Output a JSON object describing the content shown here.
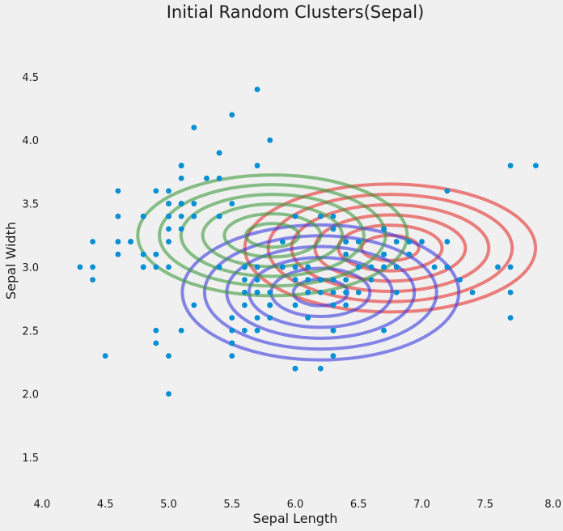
{
  "chart_data": {
    "type": "scatter",
    "title": "Initial Random Clusters(Sepal)",
    "xlabel": "Sepal Length",
    "ylabel": "Sepal Width",
    "xlim": [
      4.0,
      8.0
    ],
    "ylim": [
      1.2,
      4.85
    ],
    "xticks": [
      "4.0",
      "4.5",
      "5.0",
      "5.5",
      "6.0",
      "6.5",
      "7.0",
      "7.5",
      "8.0"
    ],
    "yticks": [
      "1.5",
      "2.0",
      "2.5",
      "3.0",
      "3.5",
      "4.0",
      "4.5"
    ],
    "grid": false,
    "legend": "none",
    "point_color": "#008fd5",
    "points": [
      [
        5.1,
        3.5
      ],
      [
        4.9,
        3.0
      ],
      [
        4.7,
        3.2
      ],
      [
        4.6,
        3.1
      ],
      [
        5.0,
        3.6
      ],
      [
        5.4,
        3.9
      ],
      [
        4.6,
        3.4
      ],
      [
        5.0,
        3.4
      ],
      [
        4.4,
        2.9
      ],
      [
        4.9,
        3.1
      ],
      [
        5.4,
        3.7
      ],
      [
        4.8,
        3.4
      ],
      [
        4.8,
        3.0
      ],
      [
        4.3,
        3.0
      ],
      [
        5.8,
        4.0
      ],
      [
        5.7,
        4.4
      ],
      [
        5.4,
        3.9
      ],
      [
        5.1,
        3.5
      ],
      [
        5.7,
        3.8
      ],
      [
        5.1,
        3.8
      ],
      [
        5.4,
        3.4
      ],
      [
        5.1,
        3.7
      ],
      [
        4.6,
        3.6
      ],
      [
        5.1,
        3.3
      ],
      [
        4.8,
        3.4
      ],
      [
        5.0,
        3.0
      ],
      [
        5.0,
        3.4
      ],
      [
        5.2,
        3.5
      ],
      [
        5.2,
        3.4
      ],
      [
        4.7,
        3.2
      ],
      [
        4.8,
        3.1
      ],
      [
        5.4,
        3.4
      ],
      [
        5.2,
        4.1
      ],
      [
        5.5,
        4.2
      ],
      [
        4.9,
        3.1
      ],
      [
        5.0,
        3.2
      ],
      [
        5.5,
        3.5
      ],
      [
        4.9,
        3.6
      ],
      [
        4.4,
        3.0
      ],
      [
        5.1,
        3.4
      ],
      [
        5.0,
        3.5
      ],
      [
        4.5,
        2.3
      ],
      [
        4.4,
        3.2
      ],
      [
        5.0,
        3.5
      ],
      [
        5.1,
        3.8
      ],
      [
        4.8,
        3.0
      ],
      [
        5.1,
        3.8
      ],
      [
        4.6,
        3.2
      ],
      [
        5.3,
        3.7
      ],
      [
        5.0,
        3.3
      ],
      [
        7.0,
        3.2
      ],
      [
        6.4,
        3.2
      ],
      [
        6.9,
        3.1
      ],
      [
        5.5,
        2.3
      ],
      [
        6.5,
        2.8
      ],
      [
        5.7,
        2.8
      ],
      [
        6.3,
        3.3
      ],
      [
        4.9,
        2.4
      ],
      [
        6.6,
        2.9
      ],
      [
        5.2,
        2.7
      ],
      [
        5.0,
        2.0
      ],
      [
        5.9,
        3.0
      ],
      [
        6.0,
        2.2
      ],
      [
        6.1,
        2.9
      ],
      [
        5.6,
        2.9
      ],
      [
        6.7,
        3.1
      ],
      [
        5.6,
        3.0
      ],
      [
        5.8,
        2.7
      ],
      [
        6.2,
        2.2
      ],
      [
        5.6,
        2.5
      ],
      [
        5.9,
        3.2
      ],
      [
        6.1,
        2.8
      ],
      [
        6.3,
        2.5
      ],
      [
        6.1,
        2.8
      ],
      [
        6.4,
        2.9
      ],
      [
        6.6,
        3.0
      ],
      [
        6.8,
        2.8
      ],
      [
        6.7,
        3.0
      ],
      [
        6.0,
        2.9
      ],
      [
        5.7,
        2.6
      ],
      [
        5.5,
        2.4
      ],
      [
        5.5,
        2.4
      ],
      [
        5.8,
        2.7
      ],
      [
        6.0,
        2.7
      ],
      [
        5.4,
        3.0
      ],
      [
        6.0,
        3.4
      ],
      [
        6.7,
        3.1
      ],
      [
        6.3,
        2.3
      ],
      [
        5.6,
        3.0
      ],
      [
        5.5,
        2.5
      ],
      [
        5.5,
        2.6
      ],
      [
        6.1,
        3.0
      ],
      [
        5.8,
        2.6
      ],
      [
        5.0,
        2.3
      ],
      [
        5.6,
        2.7
      ],
      [
        5.7,
        3.0
      ],
      [
        5.7,
        2.9
      ],
      [
        6.2,
        2.9
      ],
      [
        5.1,
        2.5
      ],
      [
        5.7,
        2.8
      ],
      [
        6.3,
        3.3
      ],
      [
        5.8,
        2.7
      ],
      [
        7.1,
        3.0
      ],
      [
        6.3,
        2.9
      ],
      [
        6.5,
        3.0
      ],
      [
        7.6,
        3.0
      ],
      [
        4.9,
        2.5
      ],
      [
        7.3,
        2.9
      ],
      [
        6.7,
        2.5
      ],
      [
        7.2,
        3.6
      ],
      [
        6.5,
        3.2
      ],
      [
        6.4,
        2.7
      ],
      [
        6.8,
        3.0
      ],
      [
        5.7,
        2.5
      ],
      [
        5.8,
        2.8
      ],
      [
        6.4,
        3.2
      ],
      [
        6.5,
        3.0
      ],
      [
        7.7,
        3.8
      ],
      [
        7.7,
        2.6
      ],
      [
        6.0,
        2.2
      ],
      [
        6.9,
        3.2
      ],
      [
        5.6,
        2.8
      ],
      [
        7.7,
        2.8
      ],
      [
        6.3,
        2.7
      ],
      [
        6.7,
        3.3
      ],
      [
        7.2,
        3.2
      ],
      [
        6.2,
        2.8
      ],
      [
        6.1,
        3.0
      ],
      [
        6.4,
        2.8
      ],
      [
        7.2,
        3.0
      ],
      [
        7.4,
        2.8
      ],
      [
        7.9,
        3.8
      ],
      [
        6.4,
        2.8
      ],
      [
        6.3,
        2.8
      ],
      [
        6.1,
        2.6
      ],
      [
        7.7,
        3.0
      ],
      [
        6.3,
        3.4
      ],
      [
        6.4,
        3.1
      ],
      [
        6.0,
        3.0
      ],
      [
        6.9,
        3.1
      ],
      [
        6.7,
        3.1
      ],
      [
        6.9,
        3.1
      ],
      [
        5.8,
        2.7
      ],
      [
        6.8,
        3.2
      ],
      [
        6.7,
        3.3
      ],
      [
        6.7,
        3.0
      ],
      [
        6.3,
        2.5
      ],
      [
        6.5,
        3.0
      ],
      [
        6.2,
        3.4
      ],
      [
        5.9,
        3.0
      ]
    ],
    "series": [
      {
        "color": "#e5302d",
        "center": [
          6.75,
          3.15
        ],
        "rx_sigma": 0.41,
        "ry_sigma": 0.18,
        "levels": [
          0.55,
          1.0,
          1.45,
          1.9,
          2.35,
          2.8
        ]
      },
      {
        "color": "#3a3adf",
        "center": [
          6.2,
          2.8
        ],
        "rx_sigma": 0.39,
        "ry_sigma": 0.19,
        "levels": [
          0.55,
          1.0,
          1.45,
          1.9,
          2.35,
          2.8
        ]
      },
      {
        "color": "#3d9a3d",
        "center": [
          5.82,
          3.25
        ],
        "rx_sigma": 0.38,
        "ry_sigma": 0.17,
        "levels": [
          0.55,
          1.0,
          1.45,
          1.9,
          2.35,
          2.8
        ]
      }
    ]
  }
}
